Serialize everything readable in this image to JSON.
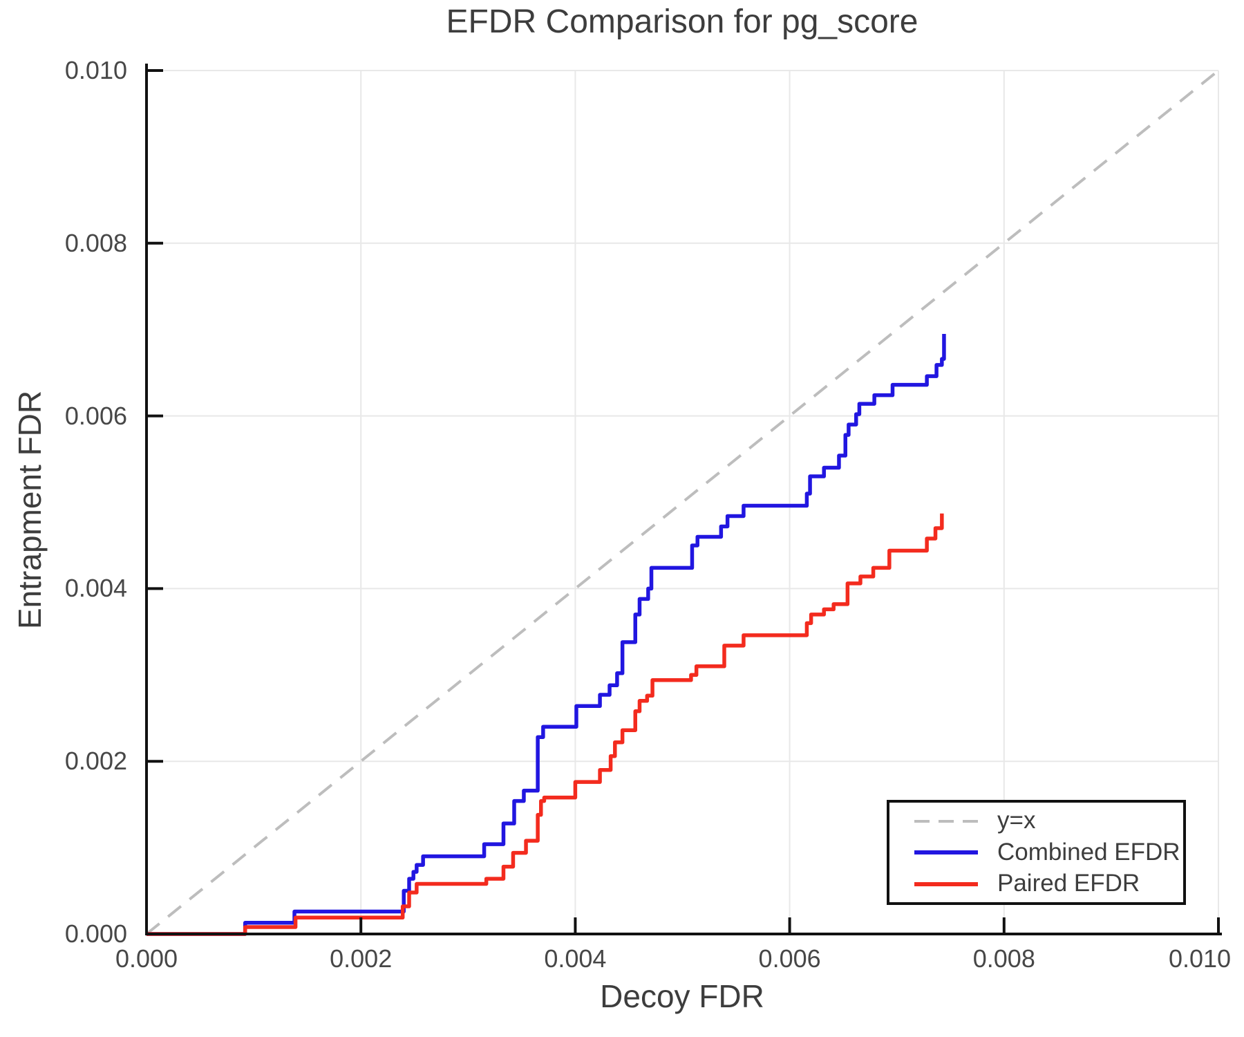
{
  "chart_data": {
    "type": "line",
    "title": "EFDR Comparison for pg_score",
    "xlabel": "Decoy FDR",
    "ylabel": "Entrapment FDR",
    "xlim": [
      0.0,
      0.01
    ],
    "ylim": [
      0.0,
      0.01
    ],
    "grid": true,
    "legend_position": "lower right",
    "xtick_values": [
      0.0,
      0.002,
      0.004,
      0.006,
      0.008,
      0.01
    ],
    "xtick_labels": [
      "0.000",
      "0.002",
      "0.004",
      "0.006",
      "0.008",
      "0.010"
    ],
    "ytick_values": [
      0.0,
      0.002,
      0.004,
      0.006,
      0.008,
      0.01
    ],
    "ytick_labels": [
      "0.000",
      "0.002",
      "0.004",
      "0.006",
      "0.008",
      "0.010"
    ],
    "series": [
      {
        "name": "y=x",
        "style": "dashed",
        "interpolation": "linear",
        "color": "#bdbdbd",
        "width": 4,
        "points": [
          [
            0.0,
            0.0
          ],
          [
            0.01,
            0.01
          ]
        ]
      },
      {
        "name": "Combined EFDR",
        "style": "solid",
        "interpolation": "step-post",
        "color": "#2116e0",
        "width": 5.5,
        "points": [
          [
            0.0,
            0.0
          ],
          [
            0.00092,
            0.00013
          ],
          [
            0.00138,
            0.00026
          ],
          [
            0.0024,
            0.0005
          ],
          [
            0.00245,
            0.00064
          ],
          [
            0.00249,
            0.00072
          ],
          [
            0.00252,
            0.0008
          ],
          [
            0.00258,
            0.0009
          ],
          [
            0.00315,
            0.00104
          ],
          [
            0.00333,
            0.00128
          ],
          [
            0.00343,
            0.00154
          ],
          [
            0.00352,
            0.00166
          ],
          [
            0.00365,
            0.00228
          ],
          [
            0.0037,
            0.0024
          ],
          [
            0.00401,
            0.00264
          ],
          [
            0.00423,
            0.00277
          ],
          [
            0.00432,
            0.00288
          ],
          [
            0.00439,
            0.00302
          ],
          [
            0.00444,
            0.00338
          ],
          [
            0.00456,
            0.0037
          ],
          [
            0.0046,
            0.00388
          ],
          [
            0.00468,
            0.004
          ],
          [
            0.00471,
            0.00424
          ],
          [
            0.00509,
            0.0045
          ],
          [
            0.00514,
            0.0046
          ],
          [
            0.00536,
            0.00472
          ],
          [
            0.00542,
            0.00484
          ],
          [
            0.00557,
            0.00496
          ],
          [
            0.00616,
            0.0051
          ],
          [
            0.00619,
            0.0053
          ],
          [
            0.00632,
            0.0054
          ],
          [
            0.00646,
            0.00554
          ],
          [
            0.00652,
            0.00578
          ],
          [
            0.00655,
            0.0059
          ],
          [
            0.00662,
            0.00602
          ],
          [
            0.00665,
            0.00614
          ],
          [
            0.00679,
            0.00624
          ],
          [
            0.00696,
            0.00636
          ],
          [
            0.00728,
            0.00646
          ],
          [
            0.00737,
            0.00659
          ],
          [
            0.00742,
            0.00666
          ],
          [
            0.00744,
            0.00695
          ]
        ]
      },
      {
        "name": "Paired EFDR",
        "style": "solid",
        "interpolation": "step-post",
        "color": "#f32b1e",
        "width": 5.5,
        "points": [
          [
            0.0,
            0.0
          ],
          [
            0.00092,
            8e-05
          ],
          [
            0.00139,
            0.00019
          ],
          [
            0.00239,
            0.00032
          ],
          [
            0.00245,
            0.00048
          ],
          [
            0.00252,
            0.00058
          ],
          [
            0.00317,
            0.00064
          ],
          [
            0.00333,
            0.00078
          ],
          [
            0.00342,
            0.00094
          ],
          [
            0.00354,
            0.00108
          ],
          [
            0.00365,
            0.00138
          ],
          [
            0.00368,
            0.00154
          ],
          [
            0.00371,
            0.00158
          ],
          [
            0.004,
            0.00176
          ],
          [
            0.00423,
            0.0019
          ],
          [
            0.00433,
            0.00206
          ],
          [
            0.00437,
            0.00222
          ],
          [
            0.00444,
            0.00236
          ],
          [
            0.00456,
            0.00258
          ],
          [
            0.0046,
            0.0027
          ],
          [
            0.00467,
            0.00276
          ],
          [
            0.00472,
            0.00294
          ],
          [
            0.00508,
            0.003
          ],
          [
            0.00513,
            0.0031
          ],
          [
            0.00539,
            0.00334
          ],
          [
            0.00557,
            0.00346
          ],
          [
            0.00616,
            0.0036
          ],
          [
            0.0062,
            0.0037
          ],
          [
            0.00632,
            0.00376
          ],
          [
            0.00641,
            0.00382
          ],
          [
            0.00654,
            0.00406
          ],
          [
            0.00666,
            0.00414
          ],
          [
            0.00678,
            0.00424
          ],
          [
            0.00693,
            0.00444
          ],
          [
            0.00728,
            0.00458
          ],
          [
            0.00736,
            0.0047
          ],
          [
            0.00742,
            0.00487
          ]
        ]
      }
    ],
    "style": {
      "grid_color": "#e8e8e8",
      "spine_color": "#111111",
      "text_color": "#3d3d3d",
      "tick_text_color": "#474747",
      "dash_pattern": "24 16"
    }
  }
}
